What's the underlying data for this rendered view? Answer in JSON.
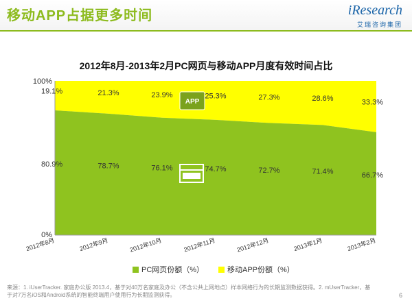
{
  "header": {
    "title": "移动APP占据更多时间",
    "logo_text": "iResearch",
    "logo_sub": "艾瑞咨询集团"
  },
  "chart_data": {
    "type": "area",
    "stacked": true,
    "percent": true,
    "title": "2012年8月-2013年2月PC网页与移动APP月度有效时间占比",
    "categories": [
      "2012年8月",
      "2012年9月",
      "2012年10月",
      "2012年11月",
      "2012年12月",
      "2013年1月",
      "2013年2月"
    ],
    "series": [
      {
        "name": "PC网页份额（%）",
        "values": [
          80.9,
          78.7,
          76.1,
          74.7,
          72.7,
          71.4,
          66.7
        ],
        "labels": [
          "80.9%",
          "78.7%",
          "76.1%",
          "74.7%",
          "72.7%",
          "71.4%",
          "66.7%"
        ],
        "color": "#8fc31f",
        "icon": "www-browser-icon"
      },
      {
        "name": "移动APP份额（%）",
        "values": [
          19.1,
          21.3,
          23.9,
          25.3,
          27.3,
          28.6,
          33.3
        ],
        "labels": [
          "19.1%",
          "21.3%",
          "23.9%",
          "25.3%",
          "27.3%",
          "28.6%",
          "33.3%"
        ],
        "color": "#ffff00",
        "icon": "app-icon",
        "icon_text": "APP"
      }
    ],
    "y_ticks": [
      "100%",
      "0%"
    ],
    "ylim": [
      0,
      100
    ],
    "grid": false,
    "legend_position": "bottom"
  },
  "footnote": "来源：1. iUserTracker. 家庭办公版 2013.4，基于对40万名家庭及办公（不含公共上网地点）样本网络行为的长期监测数据获得。2. mUserTracker，基于对7万名iOS和Android系统的智能终端用户使用行为长期监测获得。",
  "page_number": "6"
}
